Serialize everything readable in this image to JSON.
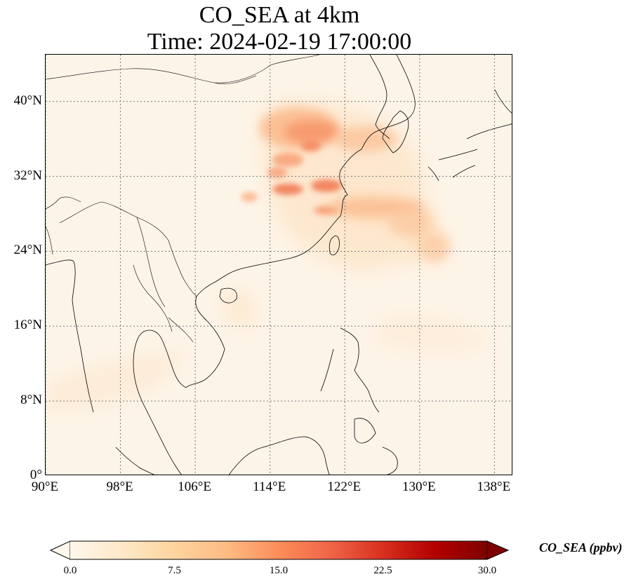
{
  "title": {
    "line1": "CO_SEA at 4km",
    "line2": "Time: 2024-02-19 17:00:00"
  },
  "map": {
    "lon_range": [
      90,
      140
    ],
    "lat_range": [
      0,
      45
    ],
    "lat_ticks": [
      {
        "value": 40,
        "label": "40°N"
      },
      {
        "value": 32,
        "label": "32°N"
      },
      {
        "value": 24,
        "label": "24°N"
      },
      {
        "value": 16,
        "label": "16°N"
      },
      {
        "value": 8,
        "label": "8°N"
      },
      {
        "value": 0,
        "label": "0°"
      }
    ],
    "lon_ticks": [
      {
        "value": 90,
        "label": "90°E"
      },
      {
        "value": 98,
        "label": "98°E"
      },
      {
        "value": 106,
        "label": "106°E"
      },
      {
        "value": 114,
        "label": "114°E"
      },
      {
        "value": 122,
        "label": "122°E"
      },
      {
        "value": 130,
        "label": "130°E"
      },
      {
        "value": 138,
        "label": "138°E"
      }
    ],
    "gridlines": "dotted",
    "background_color": "#fdf4e8",
    "coastline_color": "#000000"
  },
  "colorbar": {
    "label": "CO_SEA (ppbv)",
    "colormap": "OrRd",
    "extend": "both",
    "min": 0.0,
    "max": 30.0,
    "ticks": [
      "0.0",
      "7.5",
      "15.0",
      "22.5",
      "30.0"
    ],
    "colors": [
      "#fff7ec",
      "#fee8c8",
      "#fdd49e",
      "#fdbb84",
      "#fc8d59",
      "#ef6548",
      "#d7301f",
      "#b30000",
      "#7f0000"
    ]
  },
  "plumes": [
    {
      "lon": 117.5,
      "lat": 36.5,
      "value": 15
    },
    {
      "lon": 120.0,
      "lat": 37.0,
      "value": 12
    },
    {
      "lon": 118.5,
      "lat": 34.0,
      "value": 12
    },
    {
      "lon": 116.5,
      "lat": 30.5,
      "value": 13
    },
    {
      "lon": 120.0,
      "lat": 31.0,
      "value": 13
    },
    {
      "lon": 118.5,
      "lat": 28.5,
      "value": 12
    },
    {
      "lon": 125.0,
      "lat": 29.5,
      "value": 8
    },
    {
      "lon": 130.5,
      "lat": 27.0,
      "value": 6
    },
    {
      "lon": 112.0,
      "lat": 30.0,
      "value": 5
    }
  ]
}
